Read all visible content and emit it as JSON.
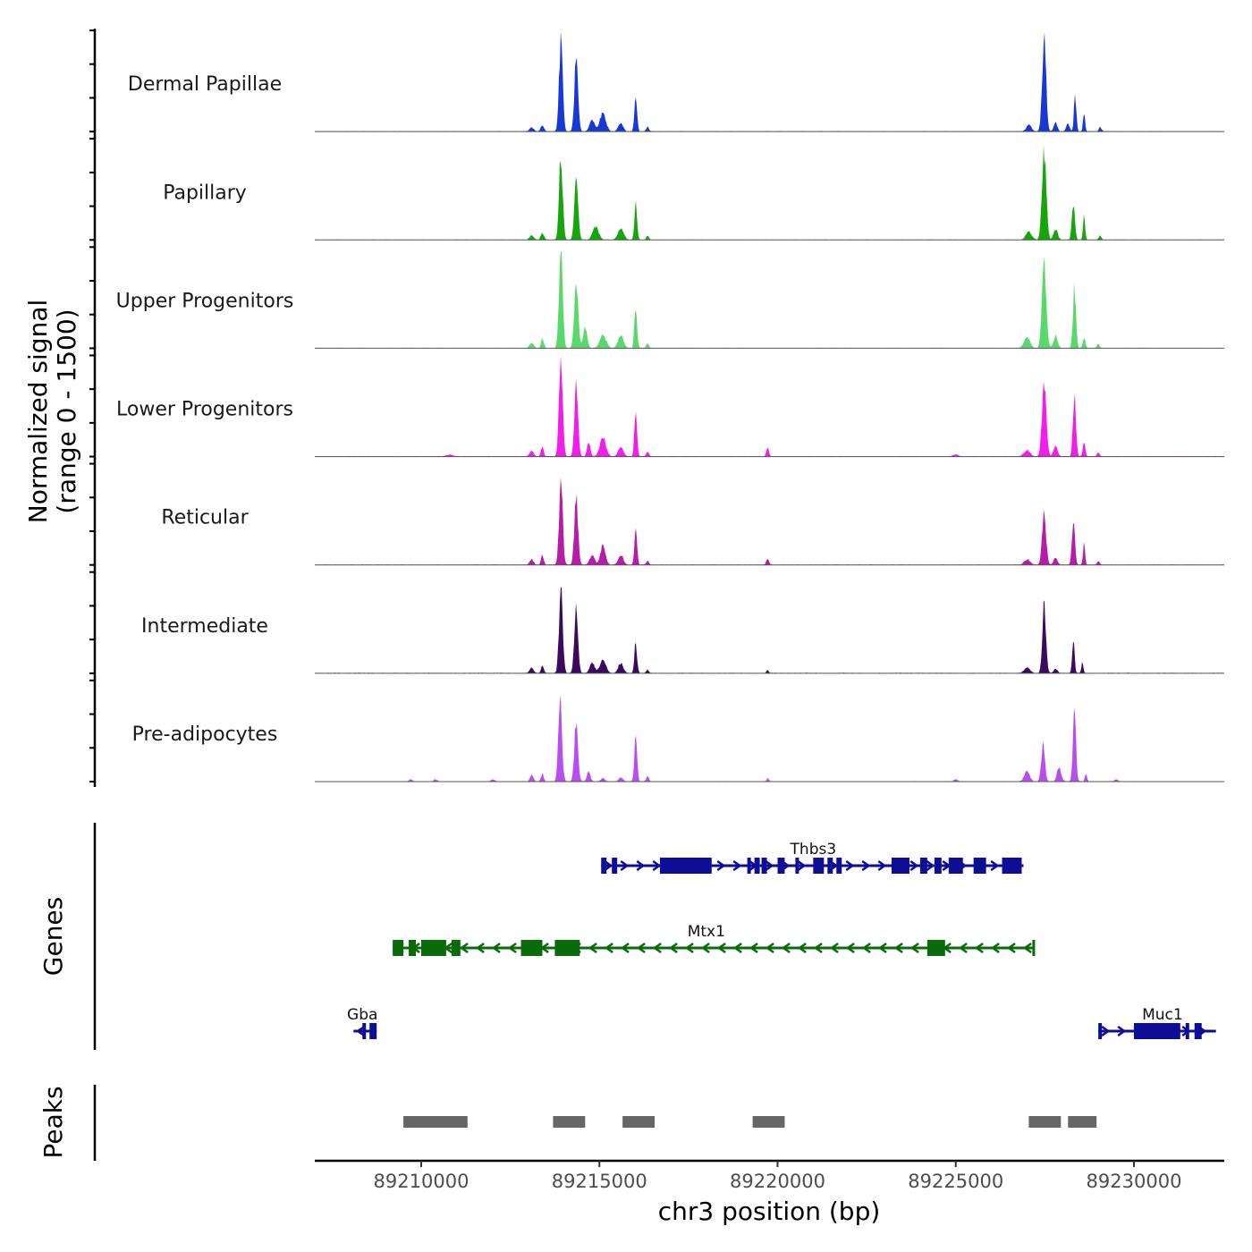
{
  "chart_data": {
    "type": "area",
    "title": "",
    "region": {
      "chrom": "chr3",
      "start": 89206800,
      "end": 89232800
    },
    "xlabel": "chr3 position (bp)",
    "xticks": [
      89210000,
      89215000,
      89220000,
      89225000,
      89230000
    ],
    "xtick_labels": [
      "89210000",
      "89215000",
      "89220000",
      "89225000",
      "89230000"
    ],
    "ylabel_line1": "Normalized signal",
    "ylabel_line2": "(range 0 - 1500)",
    "ylim": [
      0,
      1500
    ],
    "yticks_per_track": [
      0,
      500,
      1000,
      1500
    ],
    "series": [
      {
        "name": "Dermal Papillae",
        "color": "#1538d6",
        "peaks": [
          [
            89213100,
            60,
            120
          ],
          [
            89213400,
            90,
            100
          ],
          [
            89213920,
            1350,
            110
          ],
          [
            89214350,
            1080,
            110
          ],
          [
            89214800,
            180,
            150
          ],
          [
            89215100,
            280,
            180
          ],
          [
            89215600,
            120,
            150
          ],
          [
            89216020,
            520,
            80
          ],
          [
            89216350,
            70,
            80
          ],
          [
            89227480,
            1350,
            120
          ],
          [
            89227050,
            100,
            150
          ],
          [
            89227800,
            150,
            100
          ],
          [
            89228150,
            120,
            100
          ],
          [
            89228350,
            550,
            70
          ],
          [
            89228600,
            300,
            60
          ],
          [
            89229050,
            60,
            80
          ]
        ]
      },
      {
        "name": "Papillary",
        "color": "#17a50c",
        "peaks": [
          [
            89213100,
            70,
            120
          ],
          [
            89213400,
            100,
            100
          ],
          [
            89213920,
            1250,
            110
          ],
          [
            89214350,
            1000,
            110
          ],
          [
            89214900,
            200,
            180
          ],
          [
            89215600,
            160,
            180
          ],
          [
            89216020,
            520,
            80
          ],
          [
            89216350,
            60,
            80
          ],
          [
            89227480,
            1300,
            130
          ],
          [
            89227050,
            120,
            180
          ],
          [
            89227800,
            170,
            120
          ],
          [
            89228300,
            520,
            90
          ],
          [
            89228600,
            380,
            60
          ],
          [
            89229050,
            60,
            80
          ]
        ]
      },
      {
        "name": "Upper Progenitors",
        "color": "#59d96c",
        "peaks": [
          [
            89213100,
            80,
            120
          ],
          [
            89213400,
            150,
            80
          ],
          [
            89213920,
            1450,
            110
          ],
          [
            89214350,
            920,
            120
          ],
          [
            89214600,
            300,
            120
          ],
          [
            89215100,
            180,
            200
          ],
          [
            89215600,
            200,
            160
          ],
          [
            89216020,
            650,
            80
          ],
          [
            89216350,
            70,
            80
          ],
          [
            89227480,
            1300,
            130
          ],
          [
            89227000,
            160,
            180
          ],
          [
            89227800,
            180,
            120
          ],
          [
            89228330,
            900,
            90
          ],
          [
            89228600,
            150,
            80
          ],
          [
            89229000,
            60,
            80
          ]
        ]
      },
      {
        "name": "Lower Progenitors",
        "color": "#f01ee8",
        "peaks": [
          [
            89213100,
            80,
            120
          ],
          [
            89213400,
            150,
            80
          ],
          [
            89213920,
            1500,
            110
          ],
          [
            89214350,
            1100,
            110
          ],
          [
            89214700,
            200,
            100
          ],
          [
            89215100,
            300,
            180
          ],
          [
            89215600,
            150,
            150
          ],
          [
            89216020,
            650,
            80
          ],
          [
            89216350,
            70,
            80
          ],
          [
            89219720,
            150,
            80
          ],
          [
            89227480,
            1050,
            130
          ],
          [
            89227000,
            100,
            180
          ],
          [
            89227800,
            160,
            120
          ],
          [
            89228330,
            900,
            90
          ],
          [
            89228600,
            200,
            80
          ],
          [
            89229000,
            60,
            80
          ],
          [
            89210800,
            25,
            200
          ],
          [
            89225000,
            30,
            150
          ]
        ]
      },
      {
        "name": "Reticular",
        "color": "#b51ca8",
        "peaks": [
          [
            89213100,
            80,
            120
          ],
          [
            89213400,
            150,
            80
          ],
          [
            89213920,
            1250,
            110
          ],
          [
            89214350,
            1000,
            110
          ],
          [
            89214800,
            150,
            150
          ],
          [
            89215100,
            300,
            150
          ],
          [
            89215600,
            150,
            150
          ],
          [
            89216020,
            500,
            80
          ],
          [
            89216350,
            60,
            80
          ],
          [
            89219720,
            90,
            80
          ],
          [
            89227480,
            750,
            120
          ],
          [
            89227000,
            80,
            180
          ],
          [
            89227800,
            100,
            120
          ],
          [
            89228300,
            650,
            90
          ],
          [
            89228600,
            320,
            60
          ],
          [
            89229000,
            50,
            80
          ]
        ]
      },
      {
        "name": "Intermediate",
        "color": "#3c0a5c",
        "peaks": [
          [
            89213100,
            80,
            120
          ],
          [
            89213400,
            120,
            80
          ],
          [
            89213920,
            1250,
            110
          ],
          [
            89214350,
            1000,
            110
          ],
          [
            89214800,
            150,
            150
          ],
          [
            89215100,
            200,
            180
          ],
          [
            89215600,
            150,
            150
          ],
          [
            89216020,
            450,
            80
          ],
          [
            89216350,
            50,
            80
          ],
          [
            89219720,
            40,
            80
          ],
          [
            89227480,
            1000,
            110
          ],
          [
            89227000,
            80,
            180
          ],
          [
            89227800,
            60,
            120
          ],
          [
            89228300,
            500,
            70
          ],
          [
            89228550,
            150,
            60
          ]
        ]
      },
      {
        "name": "Pre-adipocytes",
        "color": "#b94ef0",
        "peaks": [
          [
            89213100,
            100,
            100
          ],
          [
            89213400,
            120,
            80
          ],
          [
            89213900,
            1200,
            110
          ],
          [
            89214350,
            900,
            110
          ],
          [
            89214700,
            150,
            100
          ],
          [
            89215100,
            50,
            120
          ],
          [
            89215600,
            60,
            120
          ],
          [
            89216020,
            700,
            80
          ],
          [
            89216350,
            80,
            80
          ],
          [
            89209700,
            30,
            100
          ],
          [
            89210400,
            30,
            100
          ],
          [
            89212000,
            25,
            120
          ],
          [
            89219720,
            40,
            80
          ],
          [
            89227000,
            150,
            160
          ],
          [
            89227450,
            550,
            110
          ],
          [
            89227900,
            220,
            120
          ],
          [
            89228330,
            1100,
            90
          ],
          [
            89228650,
            120,
            60
          ],
          [
            89229500,
            30,
            100
          ],
          [
            89225000,
            30,
            120
          ]
        ]
      }
    ],
    "genes": [
      {
        "name": "Thbs3",
        "strand": "+",
        "color": "#0d0d96",
        "row": 0,
        "start": 89215050,
        "end": 89226900,
        "label_pos": 89221000,
        "exons": [
          [
            89215050,
            89215200
          ],
          [
            89215350,
            89215500
          ],
          [
            89216700,
            89218150
          ],
          [
            89219150,
            89219250
          ],
          [
            89219350,
            89219500
          ],
          [
            89219550,
            89219700
          ],
          [
            89220000,
            89220200
          ],
          [
            89220500,
            89220600
          ],
          [
            89221000,
            89221300
          ],
          [
            89221400,
            89221550
          ],
          [
            89221650,
            89221800
          ],
          [
            89223200,
            89223700
          ],
          [
            89224000,
            89224200
          ],
          [
            89224400,
            89224600
          ],
          [
            89224800,
            89225200
          ],
          [
            89225500,
            89225850
          ],
          [
            89226300,
            89226850
          ]
        ]
      },
      {
        "name": "Mtx1",
        "strand": "-",
        "color": "#0a6b0a",
        "row": 1,
        "start": 89209200,
        "end": 89227200,
        "label_pos": 89218000,
        "exons": [
          [
            89209200,
            89209500
          ],
          [
            89209650,
            89209850
          ],
          [
            89210000,
            89210700
          ],
          [
            89210850,
            89211100
          ],
          [
            89212800,
            89213400
          ],
          [
            89213750,
            89214450
          ],
          [
            89224200,
            89224700
          ],
          [
            89227150,
            89227200
          ]
        ]
      },
      {
        "name": "Gba",
        "strand": "-",
        "color": "#0d0d96",
        "row": 2,
        "start": 89208100,
        "end": 89208750,
        "label_pos": 89208350,
        "exons": [
          [
            89208350,
            89208450
          ],
          [
            89208550,
            89208750
          ]
        ]
      },
      {
        "name": "Muc1",
        "strand": "+",
        "color": "#0d0d96",
        "row": 2,
        "start": 89229000,
        "end": 89232300,
        "label_pos": 89230800,
        "exons": [
          [
            89229000,
            89229100
          ],
          [
            89230000,
            89231300
          ],
          [
            89231450,
            89231550
          ],
          [
            89231700,
            89231900
          ]
        ]
      }
    ],
    "genes_track_label": "Genes",
    "peaks_track_label": "Peaks",
    "peaks_color": "#666666",
    "peaks": [
      [
        89209500,
        89211300
      ],
      [
        89213700,
        89214600
      ],
      [
        89215650,
        89216550
      ],
      [
        89219300,
        89220200
      ],
      [
        89227050,
        89227950
      ],
      [
        89228150,
        89228950
      ]
    ]
  }
}
